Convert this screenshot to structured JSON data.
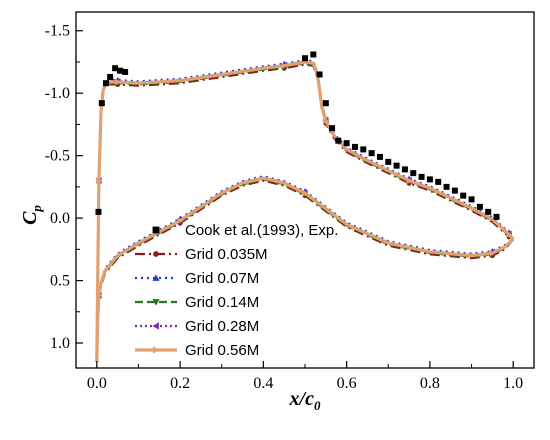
{
  "chart_data": {
    "type": "line",
    "xlabel": {
      "main": "x/c",
      "sub": "0"
    },
    "ylabel": {
      "main": "C",
      "sub": "p"
    },
    "xlim": [
      -0.05,
      1.05
    ],
    "ylim": [
      -1.65,
      1.2
    ],
    "y_inverted": true,
    "x_ticks": [
      0.0,
      0.2,
      0.4,
      0.6,
      0.8,
      1.0
    ],
    "x_tick_labels": [
      "0.0",
      "0.2",
      "0.4",
      "0.6",
      "0.8",
      "1.0"
    ],
    "y_ticks": [
      -1.5,
      -1.0,
      -0.5,
      0.0,
      0.5,
      1.0
    ],
    "y_tick_labels": [
      "-1.5",
      "-1.0",
      "-0.5",
      "0.0",
      "0.5",
      "1.0"
    ],
    "grid": false,
    "legend_position": "bottom-left",
    "colors": {
      "exp": "#000000",
      "g035": "#8b1a1a",
      "g07": "#1f3fd0",
      "g14": "#1e7a1e",
      "g28": "#7a2fa0",
      "g56": "#e0a070"
    },
    "experiment": {
      "name": "Cook et al.(1993), Exp.",
      "x": [
        0.004,
        0.012,
        0.022,
        0.032,
        0.044,
        0.056,
        0.068,
        0.5,
        0.52,
        0.535,
        0.55,
        0.565,
        0.58,
        0.6,
        0.62,
        0.64,
        0.66,
        0.68,
        0.7,
        0.72,
        0.74,
        0.76,
        0.78,
        0.8,
        0.82,
        0.84,
        0.86,
        0.88,
        0.9,
        0.92,
        0.94,
        0.96
      ],
      "y": [
        -0.05,
        -0.92,
        -1.08,
        -1.13,
        -1.2,
        -1.18,
        -1.17,
        -1.28,
        -1.31,
        -1.15,
        -0.92,
        -0.72,
        -0.62,
        -0.6,
        -0.57,
        -0.55,
        -0.52,
        -0.49,
        -0.45,
        -0.42,
        -0.39,
        -0.36,
        -0.33,
        -0.31,
        -0.29,
        -0.25,
        -0.22,
        -0.18,
        -0.15,
        -0.09,
        -0.05,
        -0.01
      ]
    },
    "upper_surface": {
      "x": [
        0.0,
        0.002,
        0.005,
        0.01,
        0.015,
        0.02,
        0.03,
        0.05,
        0.1,
        0.2,
        0.3,
        0.4,
        0.45,
        0.5,
        0.52,
        0.53,
        0.54,
        0.55,
        0.57,
        0.6,
        0.65,
        0.7,
        0.75,
        0.8,
        0.85,
        0.9,
        0.95,
        0.99,
        1.0
      ],
      "y": [
        1.15,
        0.5,
        -0.3,
        -0.85,
        -1.02,
        -1.07,
        -1.09,
        -1.09,
        -1.08,
        -1.1,
        -1.15,
        -1.2,
        -1.22,
        -1.25,
        -1.24,
        -1.15,
        -0.9,
        -0.78,
        -0.66,
        -0.55,
        -0.46,
        -0.38,
        -0.3,
        -0.24,
        -0.16,
        -0.08,
        0.01,
        0.13,
        0.17
      ]
    },
    "lower_surface": {
      "x": [
        0.0,
        0.002,
        0.005,
        0.01,
        0.02,
        0.05,
        0.1,
        0.2,
        0.3,
        0.35,
        0.4,
        0.45,
        0.5,
        0.6,
        0.7,
        0.8,
        0.9,
        0.95,
        0.98,
        1.0
      ],
      "y": [
        1.15,
        0.8,
        0.62,
        0.52,
        0.42,
        0.3,
        0.2,
        0.02,
        -0.2,
        -0.28,
        -0.32,
        -0.28,
        -0.2,
        0.05,
        0.2,
        0.27,
        0.3,
        0.28,
        0.23,
        0.17
      ]
    },
    "series": [
      {
        "name": "Grid 0.035M",
        "key": "g035",
        "dash": "10,4,2,4",
        "marker": "circle",
        "offset": 0.02
      },
      {
        "name": "Grid 0.07M",
        "key": "g07",
        "dash": "2,4",
        "marker": "triangle-up",
        "offset": -0.015
      },
      {
        "name": "Grid 0.14M",
        "key": "g14",
        "dash": "8,4",
        "marker": "triangle-down",
        "offset": 0.01
      },
      {
        "name": "Grid 0.28M",
        "key": "g28",
        "dash": "2,3",
        "marker": "triangle-left",
        "offset": -0.005
      },
      {
        "name": "Grid 0.56M",
        "key": "g56",
        "dash": "",
        "marker": "triangle-right",
        "offset": 0.0
      }
    ]
  }
}
